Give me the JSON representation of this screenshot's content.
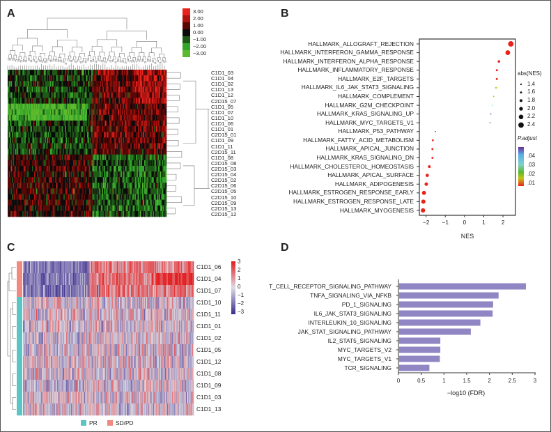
{
  "panels": {
    "a": "A",
    "b": "B",
    "c": "C",
    "d": "D"
  },
  "chart_data": [
    {
      "type": "heatmap",
      "panel": "A",
      "colorscale": {
        "labels": [
          "3.00",
          "2.00",
          "1.00",
          "0.00",
          "−1.00",
          "−2.00",
          "−3.00"
        ],
        "colors": [
          "#e8231c",
          "#b0120e",
          "#5a0806",
          "#0b0b0b",
          "#1d5a16",
          "#34a52b",
          "#5cb82c"
        ]
      },
      "rows": [
        "C1D1_03",
        "C1D1_04",
        "C1D1_02",
        "C1D1_13",
        "C1D1_12",
        "C2D15_07",
        "C1D1_05",
        "C1D1_07",
        "C1D1_10",
        "C1D1_06",
        "C1D1_01",
        "C2D15_01",
        "C1D1_09",
        "C1D1_11",
        "C2D15_11",
        "C1D1_08",
        "C2D15_08",
        "C2D15_03",
        "C2D15_04",
        "C2D15_02",
        "C2D15_06",
        "C2D15_05",
        "C2D15_10",
        "C2D15_09",
        "C2D15_13",
        "C2D15_12"
      ]
    },
    {
      "type": "scatter",
      "panel": "B",
      "xlabel": "NES",
      "xticks": [
        "−2",
        "−1",
        "0",
        "1",
        "2"
      ],
      "xlim": [
        -2.35,
        2.65
      ],
      "size_legend": {
        "title": "abs(NES)",
        "labels": [
          "1.4",
          "1.6",
          "1.8",
          "2.0",
          "2.2",
          "2.4"
        ],
        "values": [
          1.4,
          1.6,
          1.8,
          2.0,
          2.2,
          2.4
        ]
      },
      "color_legend": {
        "title": "P.adjust",
        "labels": [
          ".04",
          ".03",
          ".02",
          ".01"
        ],
        "values": [
          0.04,
          0.03,
          0.02,
          0.01
        ]
      },
      "categories": [
        "HALLMARK_ALLOGRAFT_REJECTION",
        "HALLMARK_INTERFERON_GAMMA_RESPONSE",
        "HALLMARK_INTERFERON_ALPHA_RESPONSE",
        "HALLMARK_INFLAMMATORY_RESPONSE",
        "HALLMARK_E2F_TARGETS",
        "HALLMARK_IL6_JAK_STAT3_SIGNALING",
        "HALLMARK_COMPLEMENT",
        "HALLMARK_G2M_CHECKPOINT",
        "HALLMARK_KRAS_SIGNALING_UP",
        "HALLMARK_MYC_TARGETS_V1",
        "HALLMARK_P53_PATHWAY",
        "HALLMARK_FATTY_ACID_METABOLISM",
        "HALLMARK_APICAL_JUNCTION",
        "HALLMARK_KRAS_SIGNALING_DN",
        "HALLMARK_CHOLESTEROL_HOMEOSTASIS",
        "HALLMARK_APICAL_SURFACE",
        "HALLMARK_ADIPOGENESIS",
        "HALLMARK_ESTROGEN_RESPONSE_EARLY",
        "HALLMARK_ESTROGEN_RESPONSE_LATE",
        "HALLMARK_MYOGENESIS"
      ],
      "nes": [
        2.41,
        2.25,
        1.79,
        1.68,
        1.68,
        1.64,
        1.52,
        1.44,
        1.37,
        1.33,
        -1.51,
        -1.65,
        -1.67,
        -1.67,
        -1.83,
        -1.94,
        -1.99,
        -2.11,
        -2.14,
        -2.16
      ],
      "p_adjust": [
        0.001,
        0.001,
        0.002,
        0.002,
        0.002,
        0.019,
        0.021,
        0.032,
        0.046,
        0.049,
        0.002,
        0.002,
        0.002,
        0.002,
        0.002,
        0.002,
        0.002,
        0.001,
        0.001,
        0.001
      ]
    },
    {
      "type": "heatmap",
      "panel": "C",
      "colorscale": {
        "labels": [
          "3",
          "2",
          "1",
          "0",
          "−1",
          "−2",
          "−3"
        ],
        "colors": [
          "#e41a1c",
          "#dcdce6",
          "#3b2a8c"
        ]
      },
      "rows": [
        "C1D1_06",
        "C1D1_04",
        "C1D1_07",
        "C1D1_10",
        "C1D1_11",
        "C1D1_01",
        "C1D1_02",
        "C1D1_05",
        "C1D1_12",
        "C1D1_08",
        "C1D1_09",
        "C1D1_03",
        "C1D1_13"
      ],
      "row_groups": [
        "SD/PD",
        "SD/PD",
        "SD/PD",
        "PR",
        "PR",
        "PR",
        "PR",
        "PR",
        "PR",
        "PR",
        "PR",
        "PR",
        "PR"
      ],
      "legend": [
        {
          "label": "PR",
          "color": "#5bc4c4"
        },
        {
          "label": "SD/PD",
          "color": "#f08a80"
        }
      ]
    },
    {
      "type": "bar",
      "panel": "D",
      "orientation": "horizontal",
      "xlabel": "−log10 (FDR)",
      "xticks": [
        "0",
        "0.5",
        "1",
        "1.5",
        "2",
        "2.5",
        "3"
      ],
      "xlim": [
        0,
        3
      ],
      "color": "#8f86c3",
      "categories": [
        "T_CELL_RECEPTOR_SIGNALING_PATHWAY",
        "TNFA_SIGNALING_VIA_NFKB",
        "PD_1_SIGNALING",
        "IL6_JAK_STAT3_SIGNALING",
        "INTERLEUKIN_10_SIGNALING",
        "JAK_STAT_SIGNALING_PATHWAY",
        "IL2_STAT5_SIGNALING",
        "MYC_TARGETS_V2",
        "MYC_TARGETS_V1",
        "TCR_SIGNALING"
      ],
      "values": [
        2.8,
        2.2,
        2.08,
        2.07,
        1.8,
        1.59,
        0.92,
        0.92,
        0.91,
        0.68
      ]
    }
  ]
}
